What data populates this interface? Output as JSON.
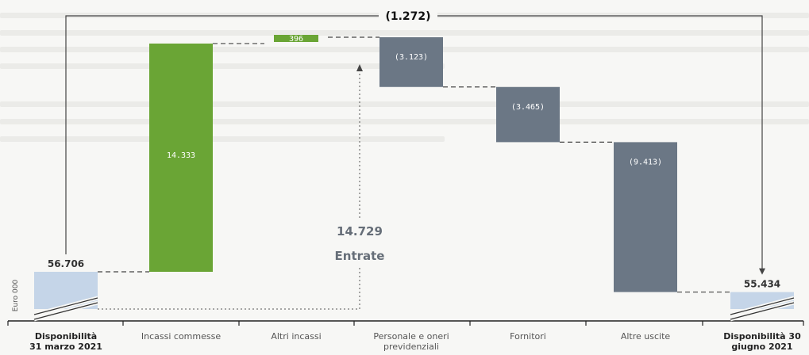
{
  "chart_data": {
    "type": "waterfall",
    "unit_label": "Euro 000",
    "categories": [
      [
        "Disponibilità",
        "31 marzo 2021"
      ],
      [
        "Incassi commesse"
      ],
      [
        "Altri incassi"
      ],
      [
        "Personale  e oneri",
        "previdenziali"
      ],
      [
        "Fornitori"
      ],
      [
        "Altre uscite"
      ],
      [
        "Disponibilità  30",
        "giugno 2021"
      ]
    ],
    "steps": [
      {
        "kind": "total",
        "value": 56706,
        "label": "56.706",
        "color": "#c5d5e8"
      },
      {
        "kind": "delta",
        "value": 14333,
        "label": "14.333",
        "color": "#6aa535"
      },
      {
        "kind": "delta",
        "value": 396,
        "label": "396",
        "color": "#6aa535"
      },
      {
        "kind": "delta",
        "value": -3123,
        "label": "(3.123)",
        "color": "#6b7785"
      },
      {
        "kind": "delta",
        "value": -3465,
        "label": "(3.465)",
        "color": "#6b7785"
      },
      {
        "kind": "delta",
        "value": -9413,
        "label": "(9.413)",
        "color": "#6b7785"
      },
      {
        "kind": "total",
        "value": 55434,
        "label": "55.434",
        "color": "#c5d5e8"
      }
    ],
    "net_change_label": "(1.272)",
    "entrate": {
      "value": "14.729",
      "label": "Entrate"
    }
  }
}
